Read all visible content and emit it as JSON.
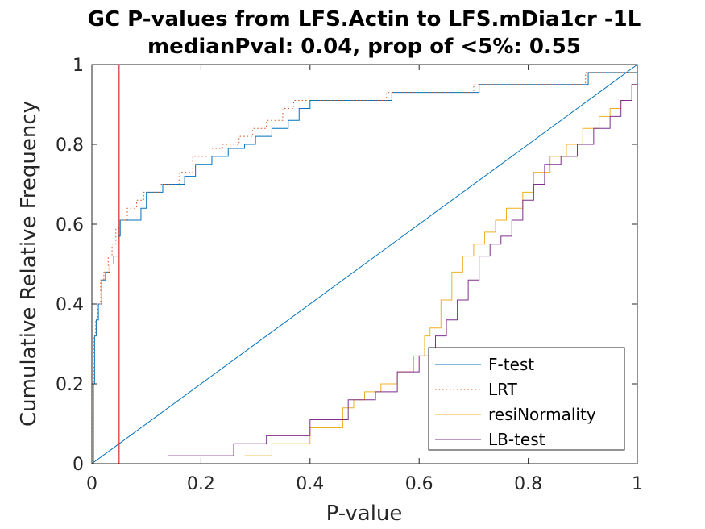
{
  "chart_data": {
    "type": "line",
    "title": [
      "GC P-values from LFS.Actin to LFS.mDia1cr -1L",
      "medianPval: 0.04, prop of <5%: 0.55"
    ],
    "xlabel": "P-value",
    "ylabel": "Cumulative Relative Frequency",
    "xlim": [
      0,
      1
    ],
    "ylim": [
      0,
      1
    ],
    "xticks": [
      0,
      0.2,
      0.4,
      0.6,
      0.8,
      1
    ],
    "xtick_labels": [
      "0",
      "0.2",
      "0.4",
      "0.6",
      "0.8",
      "1"
    ],
    "yticks": [
      0,
      0.2,
      0.4,
      0.6,
      0.8,
      1
    ],
    "ytick_labels": [
      "0",
      "0.2",
      "0.4",
      "0.6",
      "0.8",
      "1"
    ],
    "grid": false,
    "legend_position": "bottom-right",
    "reference_line": {
      "x": 0.05,
      "color": "#cc0000"
    },
    "diagonal_line": {
      "x": [
        0,
        1
      ],
      "y": [
        0,
        1
      ],
      "color": "#0072bd"
    },
    "series": [
      {
        "name": "F-test",
        "color": "#0072bd",
        "dash": "solid",
        "x": [
          0,
          0.003,
          0.005,
          0.008,
          0.012,
          0.018,
          0.025,
          0.033,
          0.04,
          0.048,
          0.052,
          0.07,
          0.09,
          0.1,
          0.13,
          0.17,
          0.19,
          0.22,
          0.25,
          0.28,
          0.3,
          0.33,
          0.36,
          0.38,
          0.4,
          0.55,
          0.71,
          0.91,
          1.0
        ],
        "y": [
          0,
          0.2,
          0.32,
          0.36,
          0.4,
          0.46,
          0.48,
          0.5,
          0.52,
          0.57,
          0.61,
          0.61,
          0.64,
          0.68,
          0.7,
          0.72,
          0.75,
          0.77,
          0.79,
          0.8,
          0.82,
          0.84,
          0.86,
          0.89,
          0.91,
          0.93,
          0.95,
          0.98,
          1.0
        ]
      },
      {
        "name": "LRT",
        "color": "#d95319",
        "dash": "dotted",
        "x": [
          0,
          0.002,
          0.004,
          0.007,
          0.011,
          0.016,
          0.022,
          0.03,
          0.037,
          0.044,
          0.05,
          0.065,
          0.082,
          0.095,
          0.125,
          0.16,
          0.185,
          0.215,
          0.24,
          0.27,
          0.295,
          0.32,
          0.35,
          0.37,
          0.39,
          0.54,
          0.7,
          0.905,
          1.0
        ],
        "y": [
          0,
          0.2,
          0.32,
          0.36,
          0.4,
          0.46,
          0.48,
          0.52,
          0.55,
          0.59,
          0.61,
          0.64,
          0.66,
          0.68,
          0.7,
          0.73,
          0.77,
          0.79,
          0.8,
          0.82,
          0.84,
          0.86,
          0.89,
          0.91,
          0.91,
          0.93,
          0.95,
          0.98,
          1.0
        ]
      },
      {
        "name": "resiNormality",
        "color": "#edb120",
        "dash": "solid",
        "x": [
          0.28,
          0.33,
          0.4,
          0.46,
          0.48,
          0.5,
          0.53,
          0.56,
          0.59,
          0.61,
          0.62,
          0.64,
          0.66,
          0.68,
          0.7,
          0.72,
          0.74,
          0.76,
          0.79,
          0.81,
          0.84,
          0.87,
          0.9,
          0.93,
          0.95,
          0.97,
          0.99,
          1.0
        ],
        "y": [
          0.02,
          0.05,
          0.09,
          0.14,
          0.16,
          0.18,
          0.2,
          0.23,
          0.27,
          0.32,
          0.34,
          0.41,
          0.48,
          0.52,
          0.55,
          0.58,
          0.61,
          0.64,
          0.68,
          0.73,
          0.77,
          0.8,
          0.84,
          0.87,
          0.89,
          0.91,
          0.95,
          1.0
        ]
      },
      {
        "name": "LB-test",
        "color": "#7e2f8e",
        "dash": "solid",
        "x": [
          0.14,
          0.26,
          0.32,
          0.4,
          0.47,
          0.52,
          0.56,
          0.6,
          0.63,
          0.65,
          0.67,
          0.69,
          0.71,
          0.73,
          0.75,
          0.77,
          0.79,
          0.81,
          0.83,
          0.86,
          0.89,
          0.92,
          0.95,
          0.97,
          0.99,
          1.0
        ],
        "y": [
          0.02,
          0.05,
          0.07,
          0.11,
          0.16,
          0.18,
          0.23,
          0.27,
          0.32,
          0.36,
          0.41,
          0.46,
          0.52,
          0.55,
          0.57,
          0.61,
          0.66,
          0.7,
          0.75,
          0.77,
          0.8,
          0.84,
          0.87,
          0.91,
          0.95,
          1.0
        ]
      }
    ]
  }
}
